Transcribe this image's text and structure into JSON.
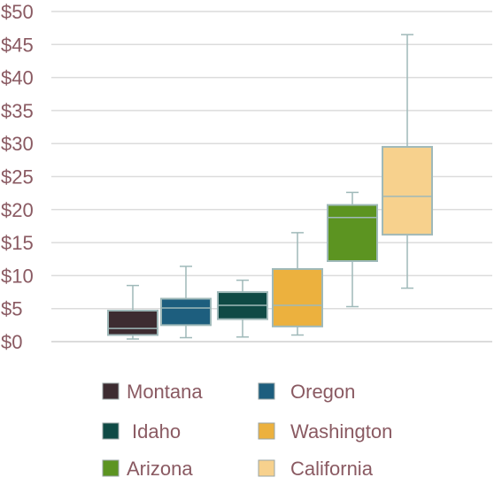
{
  "chart_data": {
    "type": "boxplot",
    "title": "",
    "xlabel": "",
    "ylabel": "",
    "ylim": [
      0,
      50
    ],
    "yticks": [
      0,
      5,
      10,
      15,
      20,
      25,
      30,
      35,
      40,
      45,
      50
    ],
    "ytick_labels": [
      "$0",
      "$5",
      "$10",
      "$15",
      "$20",
      "$25",
      "$30",
      "$35",
      "$40",
      "$45",
      "$50"
    ],
    "grid": true,
    "legend_position": "bottom",
    "series": [
      {
        "name": "Montana",
        "color": "#3d2c31",
        "min": 0.4,
        "q1": 1.0,
        "median": 2.0,
        "q3": 4.7,
        "max": 8.5
      },
      {
        "name": "Oregon",
        "color": "#1d5e7e",
        "min": 0.6,
        "q1": 2.5,
        "median": 5.1,
        "q3": 6.5,
        "max": 11.4
      },
      {
        "name": "Idaho",
        "color": "#0f4a45",
        "min": 0.7,
        "q1": 3.4,
        "median": 5.5,
        "q3": 7.5,
        "max": 9.3
      },
      {
        "name": "Washington",
        "color": "#ecb13e",
        "min": 1.0,
        "q1": 2.3,
        "median": 5.5,
        "q3": 11.0,
        "max": 16.5
      },
      {
        "name": "Arizona",
        "color": "#5c9421",
        "min": 5.3,
        "q1": 12.2,
        "median": 18.8,
        "q3": 20.7,
        "max": 22.6
      },
      {
        "name": "California",
        "color": "#f7d18d",
        "min": 8.1,
        "q1": 16.2,
        "median": 22.0,
        "q3": 29.5,
        "max": 46.5
      }
    ],
    "legend_labels": [
      "Montana",
      "Oregon",
      "Idaho",
      "Washington",
      "Arizona",
      "California"
    ]
  }
}
